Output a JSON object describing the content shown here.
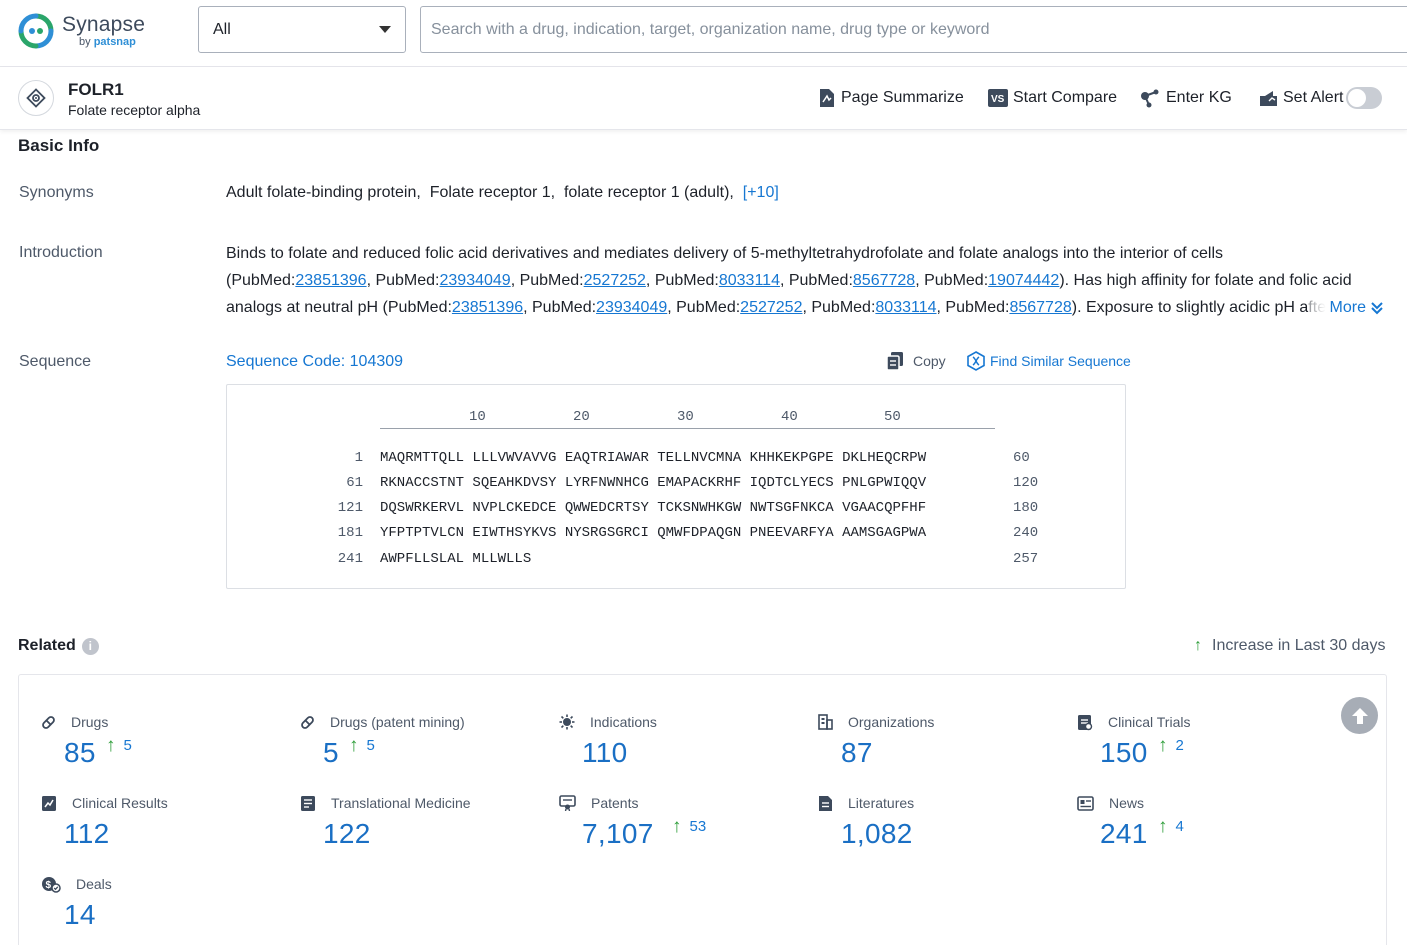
{
  "header": {
    "logo": {
      "name": "Synapse",
      "by": "by",
      "brand": "patsnap"
    },
    "scope_select": {
      "value": "All"
    },
    "search": {
      "placeholder": "Search with a drug, indication, target, organization name, drug type or keyword"
    }
  },
  "entity": {
    "title": "FOLR1",
    "subtitle": "Folate receptor alpha",
    "actions": [
      {
        "label": "Page Summarize",
        "icon": "page-summarize-icon"
      },
      {
        "label": "Start Compare",
        "icon": "compare-icon"
      },
      {
        "label": "Enter KG",
        "icon": "knowledge-graph-icon"
      },
      {
        "label": "Set Alert",
        "icon": "alert-icon"
      }
    ],
    "alert_enabled": false
  },
  "basic_info": {
    "title": "Basic Info",
    "synonyms": {
      "label": "Synonyms",
      "items": [
        "Adult folate-binding protein,",
        "Folate receptor 1,",
        "folate receptor 1 (adult),"
      ],
      "more": "[+10]"
    },
    "introduction": {
      "label": "Introduction",
      "more": "More",
      "segments": [
        {
          "t": "Binds to folate and reduced folic acid derivatives and mediates delivery of 5-methyltetrahydrofolate and folate analogs into the interior of cells (PubMed:"
        },
        {
          "l": "23851396"
        },
        {
          "t": ", PubMed:"
        },
        {
          "l": "23934049"
        },
        {
          "t": ", PubMed:"
        },
        {
          "l": "2527252"
        },
        {
          "t": ", PubMed:"
        },
        {
          "l": "8033114"
        },
        {
          "t": ", PubMed:"
        },
        {
          "l": "8567728"
        },
        {
          "t": ", PubMed:"
        },
        {
          "l": "19074442"
        },
        {
          "t": "). Has high affinity for folate and folic acid analogs at neutral pH (PubMed:"
        },
        {
          "l": "23851396"
        },
        {
          "t": ", PubMed:"
        },
        {
          "l": "23934049"
        },
        {
          "t": ", PubMed:"
        },
        {
          "l": "2527252"
        },
        {
          "t": ", PubMed:"
        },
        {
          "l": "8033114"
        },
        {
          "t": ", PubMed:"
        },
        {
          "l": "8567728"
        },
        {
          "t": "). Exposure to slightly acidic pH after receptor endocytosis triggers a conformation change"
        }
      ]
    },
    "sequence": {
      "label": "Sequence",
      "code_label": "Sequence Code: 104309",
      "copy_label": "Copy",
      "find_similar_label": "Find Similar Sequence",
      "ruler": [
        "10",
        "20",
        "30",
        "40",
        "50"
      ],
      "rows": [
        {
          "start": "1",
          "seq": "MAQRMTTQLL LLLVWVAVVG EAQTRIAWAR TELLNVCMNA KHHKEKPGPE DKLHEQCRPW",
          "end": "60"
        },
        {
          "start": "61",
          "seq": "RKNACCSTNT SQEAHKDVSY LYRFNWNHCG EMAPACKRHF IQDTCLYECS PNLGPWIQQV",
          "end": "120"
        },
        {
          "start": "121",
          "seq": "DQSWRKERVL NVPLCKEDCE QWWEDCRTSY TCKSNWHKGW NWTSGFNKCA VGAACQPFHF",
          "end": "180"
        },
        {
          "start": "181",
          "seq": "YFPTPTVLCN EIWTHSYKVS NYSRGSGRCI QMWFDPAQGN PNEEVARFYA AAMSGAGPWA",
          "end": "240"
        },
        {
          "start": "241",
          "seq": "AWPFLLSLAL MLLWLLS",
          "end": "257"
        }
      ]
    }
  },
  "related": {
    "title": "Related",
    "info_glyph": "i",
    "legend": {
      "arrow": "↑",
      "label": "Increase in Last 30 days"
    },
    "stats": [
      {
        "label": "Drugs",
        "icon": "pill-icon",
        "value": "85",
        "increase": "5"
      },
      {
        "label": "Drugs (patent mining)",
        "icon": "pill-icon",
        "value": "5",
        "increase": "5"
      },
      {
        "label": "Indications",
        "icon": "virus-icon",
        "value": "110",
        "increase": ""
      },
      {
        "label": "Organizations",
        "icon": "building-icon",
        "value": "87",
        "increase": ""
      },
      {
        "label": "Clinical Trials",
        "icon": "clipboard-icon",
        "value": "150",
        "increase": "2"
      },
      {
        "label": "Clinical Results",
        "icon": "chart-doc-icon",
        "value": "112",
        "increase": ""
      },
      {
        "label": "Translational Medicine",
        "icon": "doc-icon",
        "value": "122",
        "increase": ""
      },
      {
        "label": "Patents",
        "icon": "patent-icon",
        "value": "7,107",
        "increase": "53"
      },
      {
        "label": "Literatures",
        "icon": "literature-icon",
        "value": "1,082",
        "increase": ""
      },
      {
        "label": "News",
        "icon": "news-icon",
        "value": "241",
        "increase": "4"
      },
      {
        "label": "Deals",
        "icon": "deals-icon",
        "value": "14",
        "increase": ""
      }
    ]
  }
}
